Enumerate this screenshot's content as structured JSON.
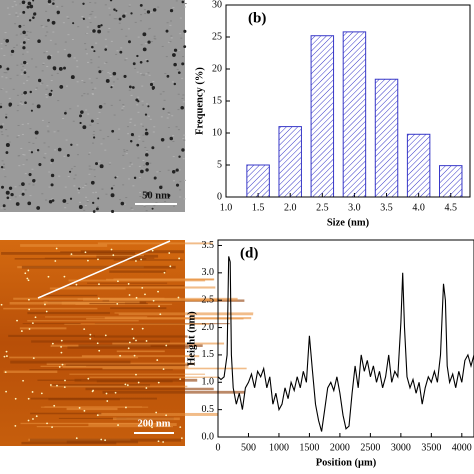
{
  "images": [
    {
      "scale_bar": "50 nm"
    },
    {
      "scale_bar": "200 nm"
    }
  ],
  "chart_data": [
    {
      "type": "bar",
      "label": "(b)",
      "xlabel": "Size (nm)",
      "ylabel": "Frequency (%)",
      "color": "#3838c8",
      "x": [
        1.5,
        2.0,
        2.5,
        3.0,
        3.5,
        4.0,
        4.5
      ],
      "values": [
        5,
        11,
        25.2,
        25.8,
        18.4,
        9.8,
        4.9
      ],
      "xlim": [
        1.0,
        4.8
      ],
      "xticks": [
        {
          "value": 1,
          "label": "1.0"
        },
        1.5,
        {
          "value": 2,
          "label": "2.0"
        },
        2.5,
        {
          "value": 3,
          "label": "3.0"
        },
        3.5,
        {
          "value": 4,
          "label": "4.0"
        },
        4.5
      ],
      "ylim": [
        0,
        30
      ],
      "yticks": [
        0,
        5,
        10,
        15,
        20,
        25,
        30
      ]
    },
    {
      "type": "line",
      "label": "(d)",
      "xlabel": "Position (μm)",
      "ylabel": "Height (nm)",
      "color": "#000000",
      "x": [
        0,
        50,
        100,
        150,
        175,
        200,
        220,
        250,
        300,
        350,
        400,
        450,
        500,
        550,
        600,
        650,
        700,
        750,
        800,
        850,
        900,
        950,
        1000,
        1050,
        1100,
        1150,
        1200,
        1250,
        1300,
        1350,
        1400,
        1450,
        1500,
        1550,
        1600,
        1650,
        1700,
        1750,
        1800,
        1850,
        1900,
        1950,
        2000,
        2050,
        2100,
        2150,
        2200,
        2250,
        2300,
        2350,
        2400,
        2450,
        2500,
        2550,
        2600,
        2650,
        2700,
        2750,
        2800,
        2850,
        2900,
        2950,
        3000,
        3030,
        3060,
        3100,
        3150,
        3200,
        3250,
        3300,
        3350,
        3400,
        3450,
        3500,
        3550,
        3600,
        3650,
        3700,
        3730,
        3760,
        3800,
        3850,
        3900,
        3950,
        4000,
        4050,
        4100,
        4150,
        4200
      ],
      "values": [
        1.1,
        1.05,
        1.1,
        1.5,
        3.3,
        3.2,
        1.5,
        0.9,
        0.6,
        0.8,
        0.5,
        0.9,
        1.0,
        1.15,
        0.9,
        1.2,
        1.1,
        1.25,
        0.9,
        1.1,
        0.6,
        0.8,
        0.5,
        0.6,
        0.9,
        0.7,
        1.0,
        0.85,
        1.1,
        0.9,
        1.2,
        1.0,
        1.85,
        1.2,
        0.6,
        0.3,
        0.1,
        0.5,
        0.9,
        1.0,
        0.85,
        1.1,
        0.8,
        0.4,
        0.15,
        0.2,
        0.8,
        1.3,
        0.9,
        1.5,
        1.2,
        1.4,
        1.1,
        1.3,
        1.0,
        1.2,
        0.9,
        1.1,
        1.5,
        1.0,
        1.2,
        1.1,
        2.1,
        3.0,
        2.0,
        1.1,
        0.9,
        1.05,
        0.8,
        1.0,
        0.6,
        0.9,
        1.1,
        1.0,
        1.2,
        1.0,
        1.5,
        2.8,
        2.5,
        1.3,
        1.0,
        1.15,
        0.9,
        1.2,
        1.0,
        1.4,
        1.5,
        1.3,
        1.5
      ],
      "xlim": [
        0,
        4200
      ],
      "xticks": [
        0,
        500,
        1000,
        1500,
        2000,
        2500,
        3000,
        3500,
        4000
      ],
      "ylim": [
        0,
        3.6
      ],
      "yticks": [
        {
          "value": 0,
          "label": "0.0"
        },
        0.5,
        {
          "value": 1,
          "label": "1.0"
        },
        1.5,
        {
          "value": 2,
          "label": "2.0"
        },
        2.5,
        {
          "value": 3,
          "label": "3.0"
        },
        3.5
      ]
    }
  ]
}
